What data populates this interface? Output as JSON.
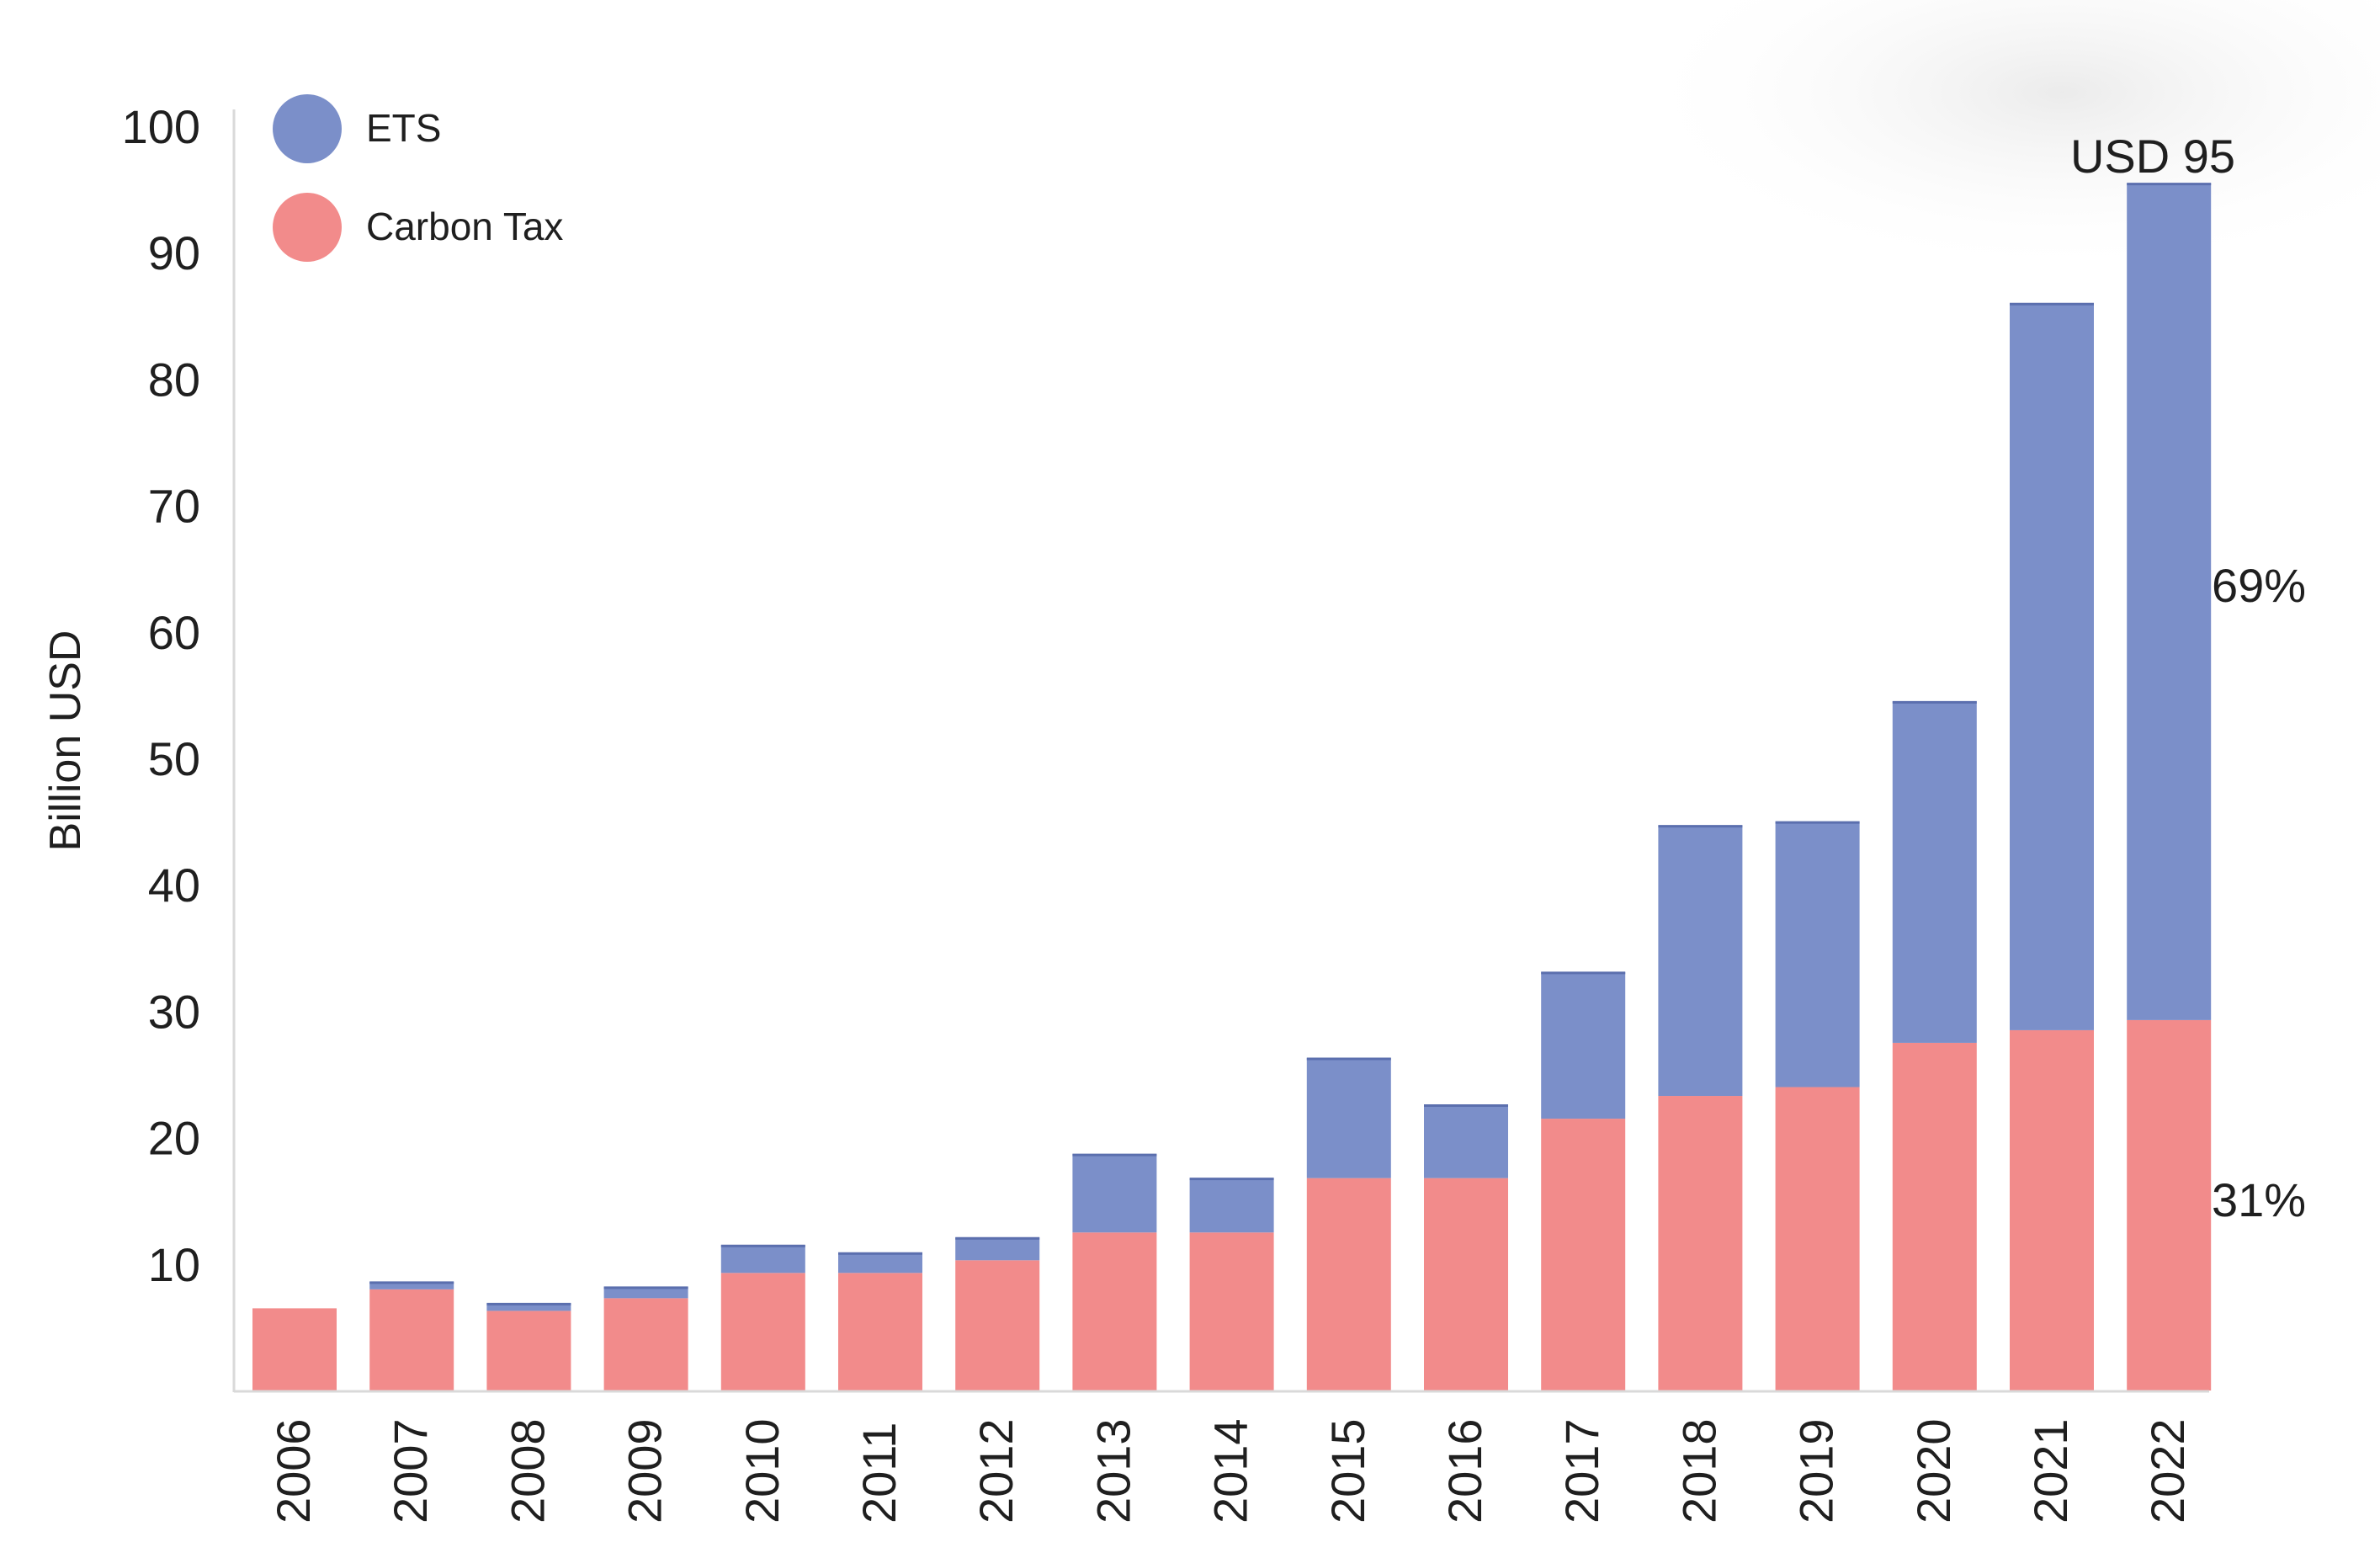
{
  "chart_data": {
    "type": "bar",
    "stacked": true,
    "title": "",
    "xlabel": "",
    "ylabel": "Billion USD",
    "ylim": [
      0,
      100
    ],
    "yticks": [
      10,
      20,
      30,
      40,
      50,
      60,
      70,
      80,
      90,
      100
    ],
    "legend_position": "top-left",
    "grid": false,
    "categories": [
      "2006",
      "2007",
      "2008",
      "2009",
      "2010",
      "2011",
      "2012",
      "2013",
      "2014",
      "2015",
      "2016",
      "2017",
      "2018",
      "2019",
      "2020",
      "2021",
      "2022"
    ],
    "series": [
      {
        "name": "Carbon Tax",
        "color": "#f28b8b",
        "values": [
          6.5,
          8,
          6.3,
          7.3,
          9.3,
          9.3,
          10.3,
          12.5,
          12.5,
          16.8,
          16.8,
          21.5,
          23.3,
          24,
          27.5,
          28.5,
          29.3
        ]
      },
      {
        "name": "ETS",
        "color": "#7b8fc9",
        "values": [
          0,
          0.6,
          0.6,
          0.9,
          2.2,
          1.6,
          1.8,
          6.2,
          4.3,
          9.5,
          5.8,
          11.6,
          21.4,
          21,
          27,
          57.5,
          66.2
        ]
      }
    ],
    "annotations": {
      "total_label": "USD 95",
      "ets_share_label": "69%",
      "tax_share_label": "31%"
    }
  }
}
